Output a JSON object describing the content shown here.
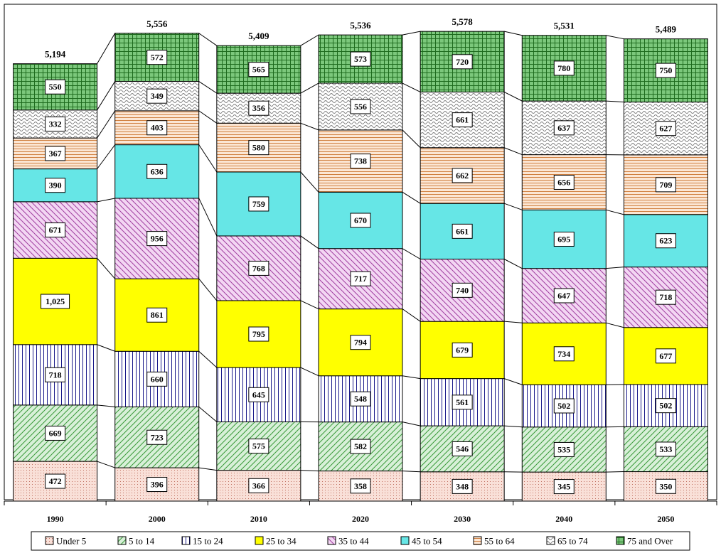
{
  "chart_data": {
    "type": "bar",
    "stacked": true,
    "categories": [
      "1990",
      "2000",
      "2010",
      "2020",
      "2030",
      "2040",
      "2050"
    ],
    "totals": [
      "5,194",
      "5,556",
      "5,409",
      "5,536",
      "5,578",
      "5,531",
      "5,489"
    ],
    "ylim": [
      0,
      5900
    ],
    "grid": false,
    "legend_position": "bottom",
    "series": [
      {
        "name": "Under 5",
        "color": "#f9e0d8",
        "fg": "#c07060",
        "pattern": "dots",
        "values": [
          472,
          396,
          366,
          358,
          348,
          345,
          350
        ]
      },
      {
        "name": "5 to 14",
        "color": "#d8f0d8",
        "fg": "#3a9a3a",
        "pattern": "diag-up",
        "values": [
          669,
          723,
          575,
          582,
          546,
          535,
          533
        ]
      },
      {
        "name": "15 to 24",
        "color": "#ffffff",
        "fg": "#1a1a8a",
        "pattern": "vertical",
        "values": [
          718,
          660,
          645,
          548,
          561,
          502,
          502
        ]
      },
      {
        "name": "25 to 34",
        "color": "#ffff00",
        "fg": "#ffff00",
        "pattern": "solid",
        "values": [
          1025,
          861,
          795,
          794,
          679,
          734,
          677
        ]
      },
      {
        "name": "35 to 44",
        "color": "#f3d6f3",
        "fg": "#a040a0",
        "pattern": "diag-down",
        "values": [
          671,
          956,
          768,
          717,
          740,
          647,
          718
        ]
      },
      {
        "name": "45 to 54",
        "color": "#66e6e6",
        "fg": "#66e6e6",
        "pattern": "solid",
        "values": [
          390,
          636,
          759,
          670,
          661,
          695,
          623
        ]
      },
      {
        "name": "55 to 64",
        "color": "#fbe6d4",
        "fg": "#d08040",
        "pattern": "horizontal",
        "values": [
          367,
          403,
          580,
          738,
          662,
          656,
          709
        ]
      },
      {
        "name": "65 to 74",
        "color": "#ffffff",
        "fg": "#808080",
        "pattern": "wave",
        "values": [
          332,
          349,
          356,
          556,
          661,
          637,
          627
        ]
      },
      {
        "name": "75 and Over",
        "color": "#7cc87c",
        "fg": "#1e6b1e",
        "pattern": "grid",
        "values": [
          550,
          572,
          565,
          573,
          720,
          780,
          750
        ]
      }
    ],
    "value_labels": [
      [
        "472",
        "396",
        "366",
        "358",
        "348",
        "345",
        "350"
      ],
      [
        "669",
        "723",
        "575",
        "582",
        "546",
        "535",
        "533"
      ],
      [
        "718",
        "660",
        "645",
        "548",
        "561",
        "502",
        "502"
      ],
      [
        "1,025",
        "861",
        "795",
        "794",
        "679",
        "734",
        "677"
      ],
      [
        "671",
        "956",
        "768",
        "717",
        "740",
        "647",
        "718"
      ],
      [
        "390",
        "636",
        "759",
        "670",
        "661",
        "695",
        "623"
      ],
      [
        "367",
        "403",
        "580",
        "738",
        "662",
        "656",
        "709"
      ],
      [
        "332",
        "349",
        "356",
        "556",
        "661",
        "637",
        "627"
      ],
      [
        "550",
        "572",
        "565",
        "573",
        "720",
        "780",
        "750"
      ]
    ]
  }
}
